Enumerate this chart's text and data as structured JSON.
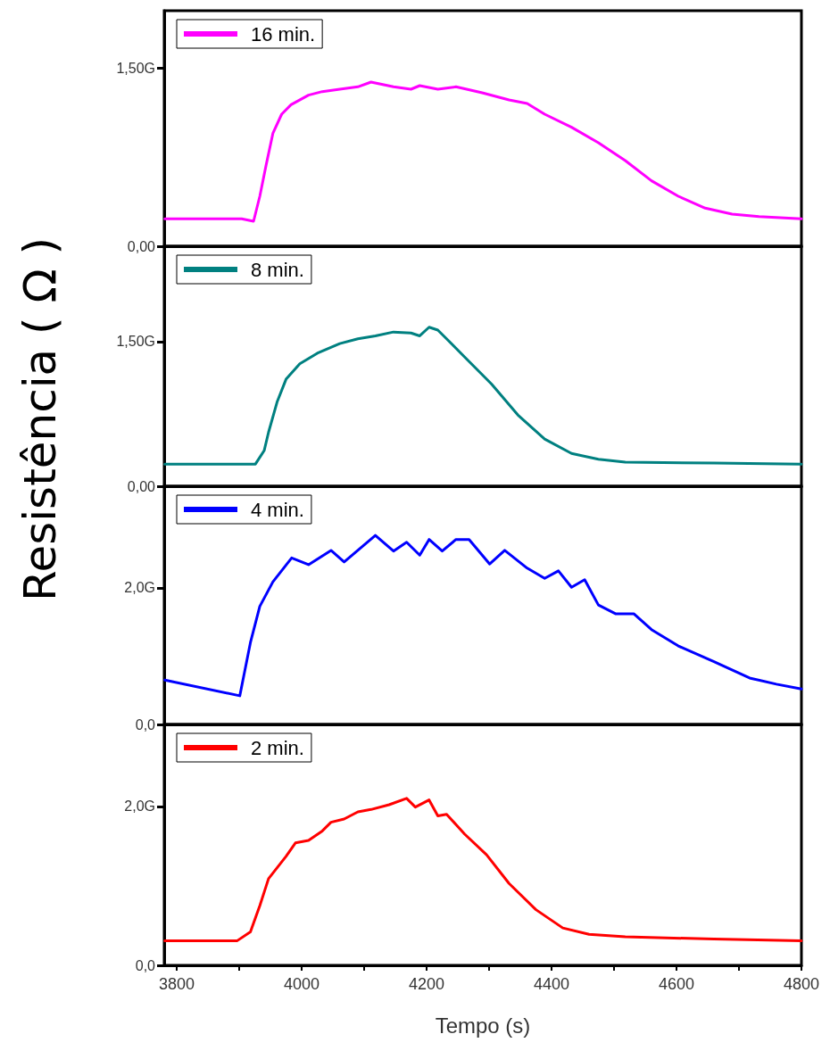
{
  "chart_data": [
    {
      "type": "line",
      "ylabel": "Resistência ( Ω )",
      "xlim": [
        3780,
        4800
      ],
      "ylim": [
        0,
        1.98
      ],
      "yticks": [
        {
          "value": 0,
          "label": "0,00"
        },
        {
          "value": 1.5,
          "label": "1,50G"
        }
      ],
      "tick_labels": "y",
      "legend": "top left",
      "grid": false,
      "marker": "none",
      "series": [
        {
          "name": "16 min.",
          "color": "#ff00ff",
          "x": [
            3781,
            3904,
            3923,
            3933,
            3943,
            3954,
            3968,
            3983,
            4011,
            4033,
            4061,
            4090,
            4111,
            4147,
            4175,
            4189,
            4218,
            4247,
            4289,
            4332,
            4361,
            4389,
            4432,
            4475,
            4518,
            4560,
            4603,
            4646,
            4689,
            4732,
            4800
          ],
          "values": [
            0.23,
            0.23,
            0.21,
            0.42,
            0.68,
            0.95,
            1.11,
            1.19,
            1.27,
            1.3,
            1.32,
            1.34,
            1.38,
            1.34,
            1.32,
            1.35,
            1.32,
            1.34,
            1.29,
            1.23,
            1.2,
            1.11,
            1.0,
            0.87,
            0.72,
            0.55,
            0.42,
            0.32,
            0.27,
            0.25,
            0.23
          ]
        }
      ]
    },
    {
      "type": "line",
      "xlim": [
        3780,
        4800
      ],
      "ylim": [
        0,
        2.49
      ],
      "yticks": [
        {
          "value": 0,
          "label": "0,00"
        },
        {
          "value": 1.5,
          "label": "1,50G"
        }
      ],
      "tick_labels": "y",
      "legend": "top left",
      "grid": false,
      "marker": "none",
      "series": [
        {
          "name": "8 min.",
          "color": "#008080",
          "x": [
            3781,
            3926,
            3940,
            3947,
            3961,
            3975,
            3997,
            4025,
            4061,
            4090,
            4118,
            4147,
            4175,
            4189,
            4204,
            4218,
            4232,
            4261,
            4304,
            4346,
            4389,
            4432,
            4475,
            4518,
            4660,
            4800
          ],
          "values": [
            0.23,
            0.23,
            0.37,
            0.56,
            0.88,
            1.11,
            1.27,
            1.38,
            1.48,
            1.53,
            1.56,
            1.6,
            1.59,
            1.56,
            1.65,
            1.62,
            1.53,
            1.34,
            1.06,
            0.74,
            0.49,
            0.34,
            0.28,
            0.25,
            0.24,
            0.23
          ]
        }
      ]
    },
    {
      "type": "line",
      "xlim": [
        3780,
        4800
      ],
      "ylim": [
        0,
        3.49
      ],
      "yticks": [
        {
          "value": 0,
          "label": "0,0"
        },
        {
          "value": 2,
          "label": "2,0G"
        }
      ],
      "tick_labels": "y",
      "legend": "top left",
      "grid": false,
      "marker": "none",
      "series": [
        {
          "name": "4 min.",
          "color": "#0000ff",
          "x": [
            3781,
            3901,
            3918,
            3933,
            3954,
            3984,
            4011,
            4047,
            4068,
            4118,
            4147,
            4168,
            4189,
            4204,
            4225,
            4247,
            4268,
            4301,
            4325,
            4361,
            4389,
            4411,
            4432,
            4453,
            4475,
            4503,
            4532,
            4560,
            4603,
            4660,
            4717,
            4760,
            4800
          ],
          "values": [
            0.65,
            0.42,
            1.2,
            1.73,
            2.09,
            2.44,
            2.34,
            2.55,
            2.38,
            2.77,
            2.54,
            2.67,
            2.48,
            2.71,
            2.54,
            2.71,
            2.71,
            2.35,
            2.55,
            2.29,
            2.14,
            2.25,
            2.01,
            2.12,
            1.75,
            1.62,
            1.62,
            1.39,
            1.15,
            0.92,
            0.68,
            0.59,
            0.52
          ]
        }
      ]
    },
    {
      "type": "line",
      "xlabel": "Tempo (s)",
      "xlim": [
        3780,
        4800
      ],
      "xticks": [
        3800,
        {
          "value": 3900,
          "label": null
        },
        4000,
        {
          "value": 4100,
          "label": null
        },
        4200,
        {
          "value": 4300,
          "label": null
        },
        4400,
        {
          "value": 4500,
          "label": null
        },
        4600,
        {
          "value": 4700,
          "label": null
        },
        4800
      ],
      "ylim": [
        0,
        3.03
      ],
      "yticks": [
        {
          "value": 0,
          "label": "0,0"
        },
        {
          "value": 2,
          "label": "2,0G"
        }
      ],
      "legend": "top left",
      "grid": false,
      "marker": "none",
      "series": [
        {
          "name": "2 min.",
          "color": "#ff0000",
          "x": [
            3781,
            3897,
            3918,
            3933,
            3947,
            3975,
            3990,
            4011,
            4033,
            4047,
            4068,
            4090,
            4111,
            4140,
            4168,
            4182,
            4204,
            4218,
            4232,
            4261,
            4296,
            4332,
            4375,
            4418,
            4460,
            4518,
            4660,
            4800
          ],
          "values": [
            0.31,
            0.31,
            0.42,
            0.75,
            1.09,
            1.37,
            1.54,
            1.57,
            1.69,
            1.8,
            1.84,
            1.93,
            1.96,
            2.02,
            2.1,
            1.99,
            2.08,
            1.88,
            1.9,
            1.65,
            1.39,
            1.03,
            0.7,
            0.47,
            0.39,
            0.36,
            0.33,
            0.31
          ]
        }
      ]
    }
  ]
}
